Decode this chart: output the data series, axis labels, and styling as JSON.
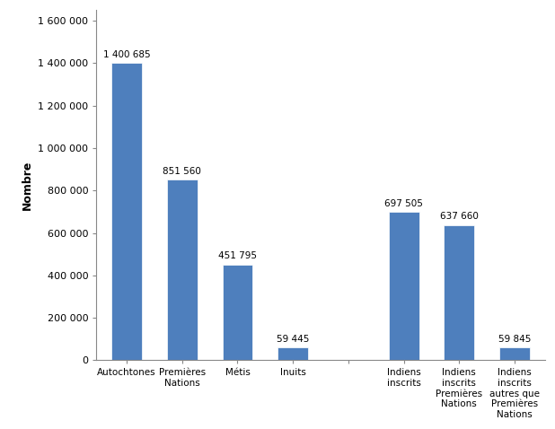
{
  "categories": [
    "Autochtones",
    "Premières\nNations",
    "Métis",
    "Inuits",
    "",
    "Indiens\ninscrits",
    "Indiens\ninscrits\nPremières\nNations",
    "Indiens\ninscrits\nautres que\nPremières\nNations"
  ],
  "values": [
    1400685,
    851560,
    451795,
    59445,
    0,
    697505,
    637660,
    59845
  ],
  "labels": [
    "1 400 685",
    "851 560",
    "451 795",
    "59 445",
    "",
    "697 505",
    "637 660",
    "59 845"
  ],
  "bar_color": "#4E7FBD",
  "ylabel": "Nombre",
  "ylim": [
    0,
    1650000
  ],
  "yticks": [
    0,
    200000,
    400000,
    600000,
    800000,
    1000000,
    1200000,
    1400000,
    1600000
  ],
  "ytick_labels": [
    "0",
    "200 000",
    "400 000",
    "600 000",
    "800 000",
    "1 000 000",
    "1 200 000",
    "1 400 000",
    "1 600 000"
  ],
  "bar_width": 0.55,
  "label_fontsize": 7.5,
  "ylabel_fontsize": 9,
  "xtick_fontsize": 7.5,
  "ytick_fontsize": 8,
  "bg_color": "#ffffff",
  "figsize": [
    6.18,
    4.78
  ],
  "dpi": 100
}
